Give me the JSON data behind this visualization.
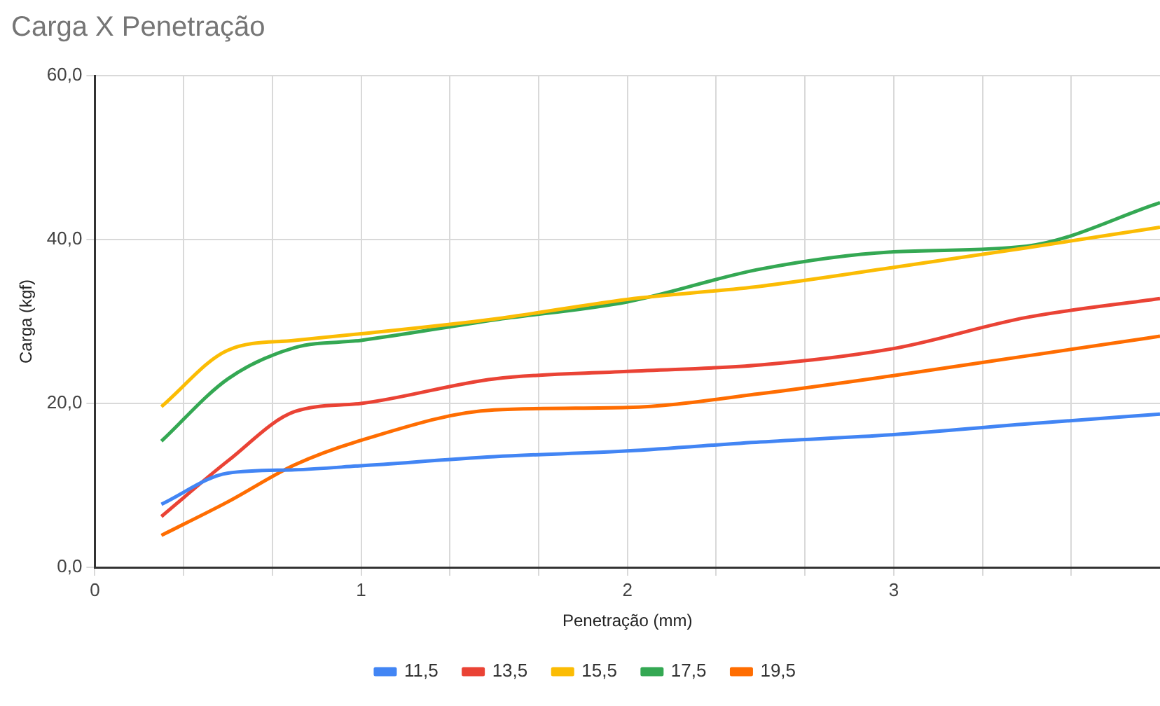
{
  "chart_data": {
    "type": "line",
    "title": "Carga X Penetração",
    "xlabel": "Penetração (mm)",
    "ylabel": "Carga (kgf)",
    "x": [
      0.25,
      0.5,
      0.75,
      1,
      1.5,
      2,
      2.5,
      3,
      3.5,
      4
    ],
    "series": [
      {
        "name": "11,5",
        "color": "#4285f4",
        "values": [
          7.7,
          11.5,
          11.9,
          12.4,
          13.5,
          14.2,
          15.3,
          16.2,
          17.5,
          18.7
        ]
      },
      {
        "name": "13,5",
        "color": "#ea4335",
        "values": [
          6.2,
          13,
          19,
          20,
          23,
          23.9,
          24.7,
          26.7,
          30.5,
          32.8
        ]
      },
      {
        "name": "15,5",
        "color": "#fbbc04",
        "values": [
          19.6,
          26.5,
          27.7,
          28.5,
          30.3,
          32.7,
          34.3,
          36.6,
          39,
          41.5
        ]
      },
      {
        "name": "17,5",
        "color": "#34a853",
        "values": [
          15.4,
          23,
          26.8,
          27.7,
          30.2,
          32.4,
          36.4,
          38.5,
          39.2,
          44.5
        ]
      },
      {
        "name": "19,5",
        "color": "#ff6d01",
        "values": [
          3.9,
          8,
          12.5,
          15.5,
          19.2,
          19.5,
          21.2,
          23.4,
          25.8,
          28.2
        ]
      }
    ],
    "xlim": [
      0,
      4
    ],
    "xticks": [
      0,
      {
        "value": 0.3333,
        "label": null
      },
      {
        "value": 0.6667,
        "label": null
      },
      1,
      {
        "value": 1.3333,
        "label": null
      },
      {
        "value": 1.6667,
        "label": null
      },
      2,
      {
        "value": 2.3333,
        "label": null
      },
      {
        "value": 2.6667,
        "label": null
      },
      3,
      {
        "value": 3.3333,
        "label": null
      },
      {
        "value": 3.6667,
        "label": null
      }
    ],
    "ylim": [
      0,
      60
    ],
    "yticks": [
      {
        "value": 0,
        "label": "0,0"
      },
      {
        "value": 20,
        "label": "20,0"
      },
      {
        "value": 40,
        "label": "40,0"
      },
      {
        "value": 60,
        "label": "60,0"
      }
    ],
    "grid": true,
    "legend": "bottom",
    "marker": "none",
    "line_style": "solid"
  }
}
